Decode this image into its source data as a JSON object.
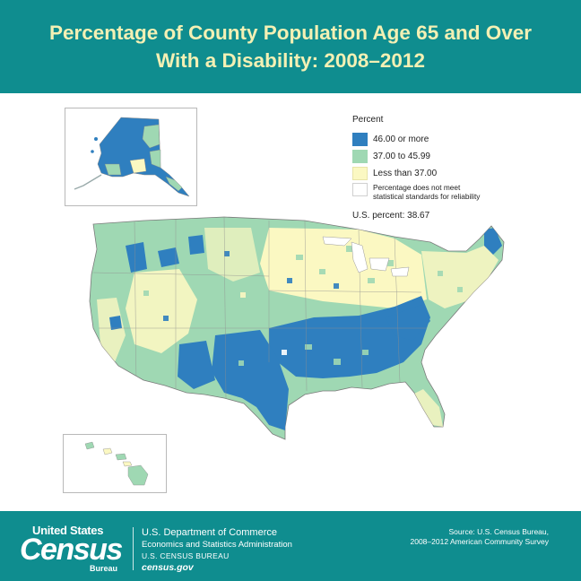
{
  "header": {
    "title_line1": "Percentage of County Population Age 65 and Over",
    "title_line2": "With a Disability: 2008–2012"
  },
  "legend": {
    "title": "Percent",
    "items": [
      {
        "label": "46.00 or more",
        "color": "#2f7fbf"
      },
      {
        "label": "37.00 to 45.99",
        "color": "#9fd8b3"
      },
      {
        "label": "Less than 37.00",
        "color": "#fbf8c2"
      }
    ],
    "no_data_line1": "Percentage does not meet",
    "no_data_line2": "statistical standards for reliability",
    "no_data_color": "#ffffff"
  },
  "us_percent": "U.S. percent: 38.67",
  "footer": {
    "logo_united_states": "United States",
    "logo_census": "Census",
    "logo_bureau": "Bureau",
    "dept_line1": "U.S. Department of Commerce",
    "dept_line2": "Economics and Statistics Administration",
    "dept_line3": "U.S. CENSUS BUREAU",
    "dept_line4": "census.gov",
    "source_line1": "Source: U.S. Census Bureau,",
    "source_line2": "2008–2012 American Community Survey"
  },
  "colors": {
    "brand_teal": "#0f8d8f",
    "title_yellow": "#f3f0b4"
  }
}
